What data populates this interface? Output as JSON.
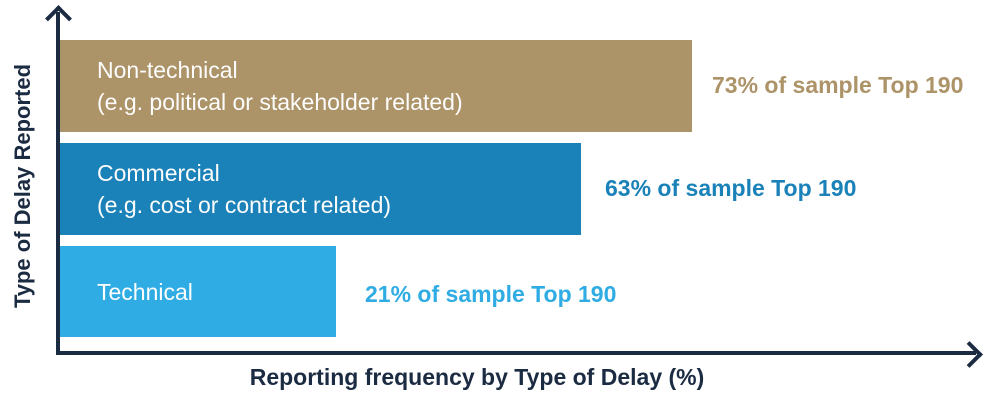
{
  "chart_data": {
    "type": "bar",
    "orientation": "horizontal",
    "xlabel": "Reporting frequency by Type of Delay (%)",
    "ylabel": "Type of Delay Reported",
    "xlim": [
      0,
      100
    ],
    "grid": false,
    "legend": "none",
    "categories": [
      "Non-technical (e.g. political or stakeholder related)",
      "Commercial (e.g. cost or contract related)",
      "Technical"
    ],
    "values": [
      73,
      63,
      21
    ],
    "annotations": [
      "73% of sample Top 190",
      "63% of sample Top 190",
      "21% of sample Top 190"
    ],
    "colors": [
      "#ac9368",
      "#1a82b8",
      "#2face3"
    ],
    "axis_color": "#1b2b42",
    "bar_text_color": "#fdfdfd"
  },
  "bars": [
    {
      "label_line1": "Non-technical",
      "label_line2": "(e.g. political or stakeholder related)",
      "annotation": "73% of sample Top 190",
      "value": 73,
      "color": "#ac9368"
    },
    {
      "label_line1": "Commercial",
      "label_line2": "(e.g. cost or contract related)",
      "annotation": "63% of sample Top 190",
      "value": 63,
      "color": "#1a82b8"
    },
    {
      "label_line1": "Technical",
      "annotation": "21% of sample Top 190",
      "value": 21,
      "color": "#2face3"
    }
  ],
  "axes": {
    "x_label": "Reporting frequency by Type of Delay (%)",
    "y_label": "Type of Delay Reported"
  }
}
